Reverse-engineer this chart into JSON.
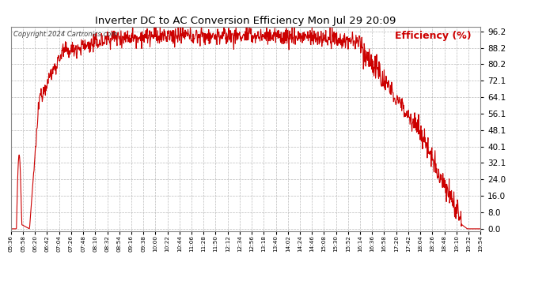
{
  "title": "Inverter DC to AC Conversion Efficiency Mon Jul 29 20:09",
  "copyright": "Copyright 2024 Cartronics.com",
  "legend_label": "Efficiency (%)",
  "legend_color": "#cc0000",
  "line_color": "#cc0000",
  "background_color": "#ffffff",
  "grid_color": "#aaaaaa",
  "title_color": "#000000",
  "copyright_color": "#444444",
  "ylim": [
    -1.0,
    98.5
  ],
  "yticks": [
    0.0,
    8.0,
    16.0,
    24.0,
    32.1,
    40.1,
    48.1,
    56.1,
    64.1,
    72.1,
    80.2,
    88.2,
    96.2
  ],
  "x_tick_labels": [
    "05:36",
    "05:58",
    "06:20",
    "06:42",
    "07:04",
    "07:26",
    "07:48",
    "08:10",
    "08:32",
    "08:54",
    "09:16",
    "09:38",
    "10:00",
    "10:22",
    "10:44",
    "11:06",
    "11:28",
    "11:50",
    "12:12",
    "12:34",
    "12:56",
    "13:18",
    "13:40",
    "14:02",
    "14:24",
    "14:46",
    "15:08",
    "15:30",
    "15:52",
    "16:14",
    "16:36",
    "16:58",
    "17:20",
    "17:42",
    "18:04",
    "18:26",
    "18:48",
    "19:10",
    "19:32",
    "19:54"
  ]
}
